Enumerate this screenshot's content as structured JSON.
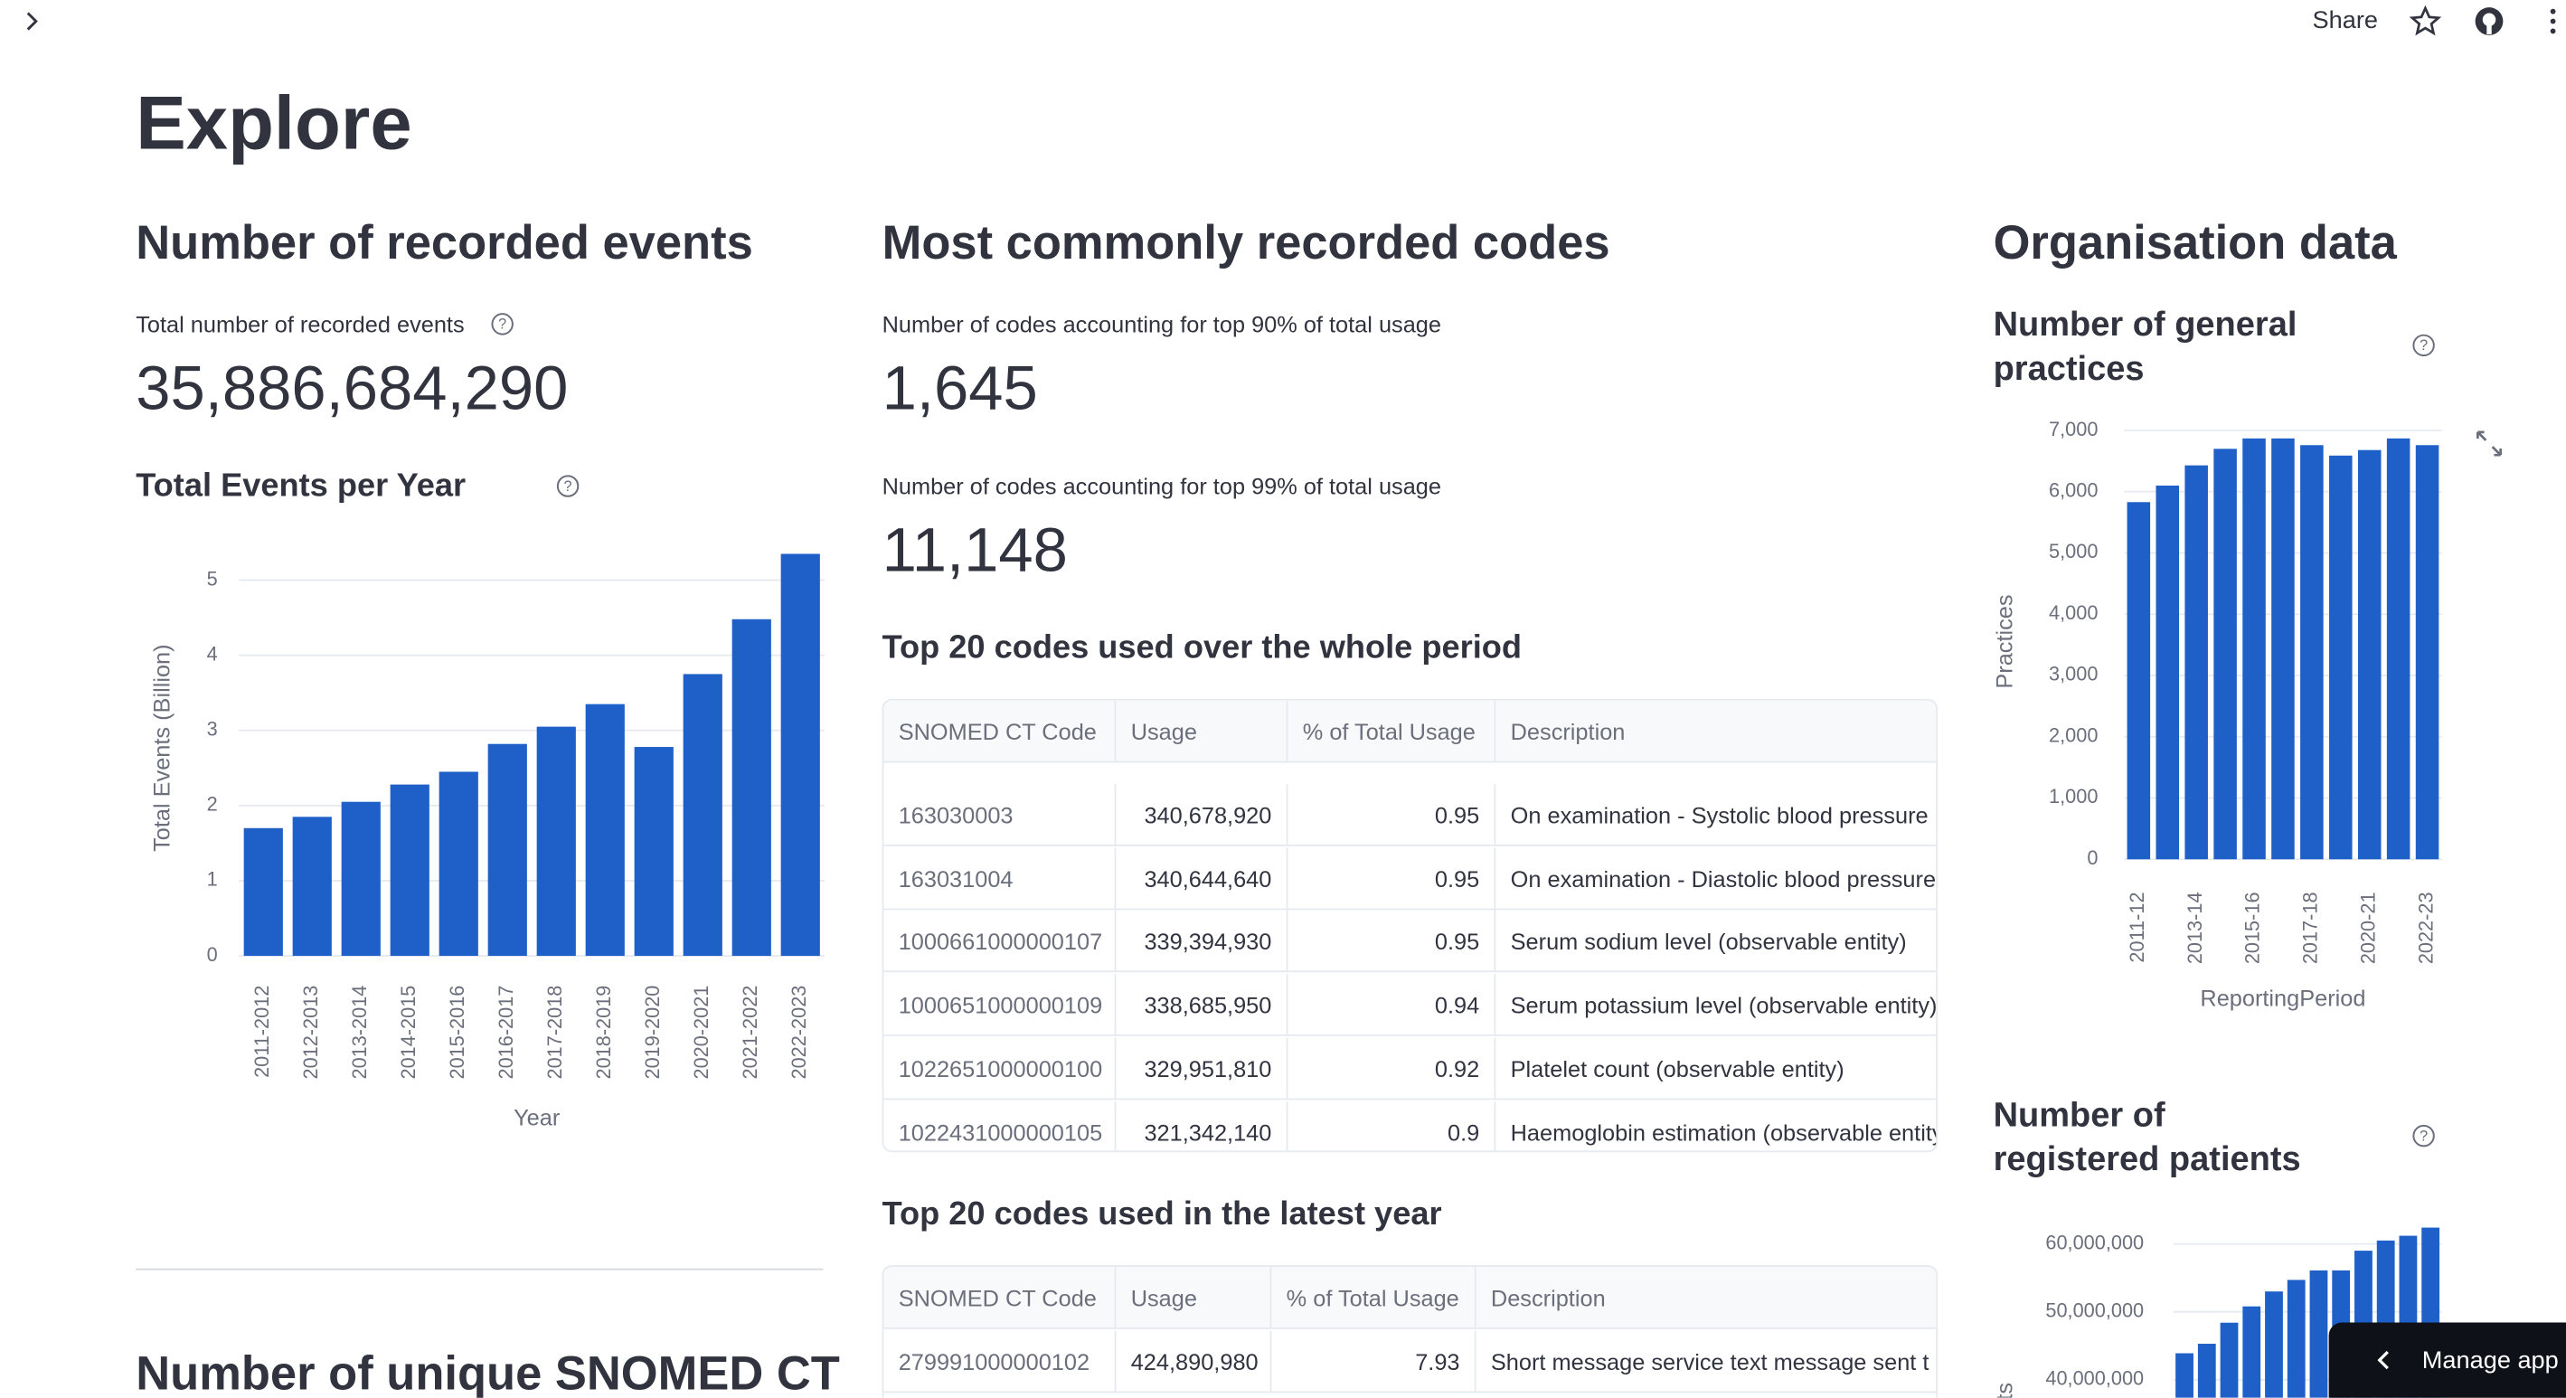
{
  "toolbar": {
    "share": "Share"
  },
  "title": "Explore",
  "events": {
    "heading": "Number of recorded events",
    "metric_label": "Total number of recorded events",
    "metric_value": "35,886,684,290",
    "chart": {
      "type": "bar",
      "title": "Total Events per Year",
      "x_label": "Year",
      "y_label": "Total Events (Billion)",
      "categories": [
        "2011-2012",
        "2012-2013",
        "2013-2014",
        "2014-2015",
        "2015-2016",
        "2016-2017",
        "2017-2018",
        "2018-2019",
        "2019-2020",
        "2020-2021",
        "2021-2022",
        "2022-2023"
      ],
      "values": [
        1.7,
        1.85,
        2.05,
        2.28,
        2.45,
        2.82,
        3.05,
        3.35,
        2.78,
        3.75,
        4.48,
        5.35
      ],
      "color": "#1e5fc8",
      "ylim": [
        0,
        5.4
      ],
      "yticks": [
        0,
        1,
        2,
        3,
        4,
        5
      ],
      "grid": true
    },
    "next_heading": "Number of unique SNOMED CT"
  },
  "codes": {
    "heading": "Most commonly recorded codes",
    "metric_90_label": "Number of codes accounting for top 90% of total usage",
    "metric_90_value": "1,645",
    "metric_99_label": "Number of codes accounting for top 99% of total usage",
    "metric_99_value": "11,148",
    "table_whole": {
      "title": "Top 20 codes used over the whole period",
      "columns": [
        "SNOMED CT Code",
        "Usage",
        "% of Total Usage",
        "Description"
      ],
      "rows": [
        [
          "163030003",
          "340,678,920",
          0.95,
          "On examination - Systolic blood pressure"
        ],
        [
          "163031004",
          "340,644,640",
          0.95,
          "On examination - Diastolic blood pressure"
        ],
        [
          "1000661000000107",
          "339,394,930",
          0.95,
          "Serum sodium level (observable entity)"
        ],
        [
          "1000651000000109",
          "338,685,950",
          0.94,
          "Serum potassium level (observable entity)"
        ],
        [
          "1022651000000100",
          "329,951,810",
          0.92,
          "Platelet count (observable entity)"
        ],
        [
          "1022431000000105",
          "321,342,140",
          0.9,
          "Haemoglobin estimation (observable entity)"
        ]
      ]
    },
    "table_latest": {
      "title": "Top 20 codes used in the latest year",
      "columns": [
        "SNOMED CT Code",
        "Usage",
        "% of Total Usage",
        "Description"
      ],
      "rows": [
        [
          "279991000000102",
          "424,890,980",
          7.93,
          "Short message service text message sent t"
        ]
      ]
    }
  },
  "organisation": {
    "heading": "Organisation data",
    "practices_chart": {
      "type": "bar",
      "title": "Number of general practices",
      "x_label": "ReportingPeriod",
      "y_label": "Practices",
      "categories": [
        "2011-12",
        null,
        "2013-14",
        null,
        "2015-16",
        null,
        "2017-18",
        null,
        "2020-21",
        null,
        "2022-23"
      ],
      "values": [
        5830,
        6100,
        6430,
        6700,
        6870,
        6870,
        6760,
        6590,
        6680,
        6870,
        6760
      ],
      "color": "#1e5fc8",
      "ylim": [
        0,
        7000
      ],
      "yticks": [
        0,
        {
          "value": 1000,
          "label": "1,000"
        },
        {
          "value": 2000,
          "label": "2,000"
        },
        {
          "value": 3000,
          "label": "3,000"
        },
        {
          "value": 4000,
          "label": "4,000"
        },
        {
          "value": 5000,
          "label": "5,000"
        },
        {
          "value": 6000,
          "label": "6,000"
        },
        {
          "value": 7000,
          "label": "7,000"
        }
      ],
      "grid": true
    },
    "patients_chart": {
      "type": "bar",
      "title": "Number of registered patients",
      "y_label": "Patients",
      "values": [
        43900000,
        45300000,
        48400000,
        50800000,
        53000000,
        54700000,
        56100000,
        56100000,
        59000000,
        60500000,
        61200000,
        62400000
      ],
      "color": "#1e5fc8",
      "ylim": [
        36000000,
        63000000
      ],
      "yticks": [
        {
          "value": 40000000,
          "label": "40,000,000"
        },
        {
          "value": 50000000,
          "label": "50,000,000"
        },
        {
          "value": 60000000,
          "label": "60,000,000"
        }
      ],
      "grid": true
    }
  },
  "manage_app": "Manage app"
}
